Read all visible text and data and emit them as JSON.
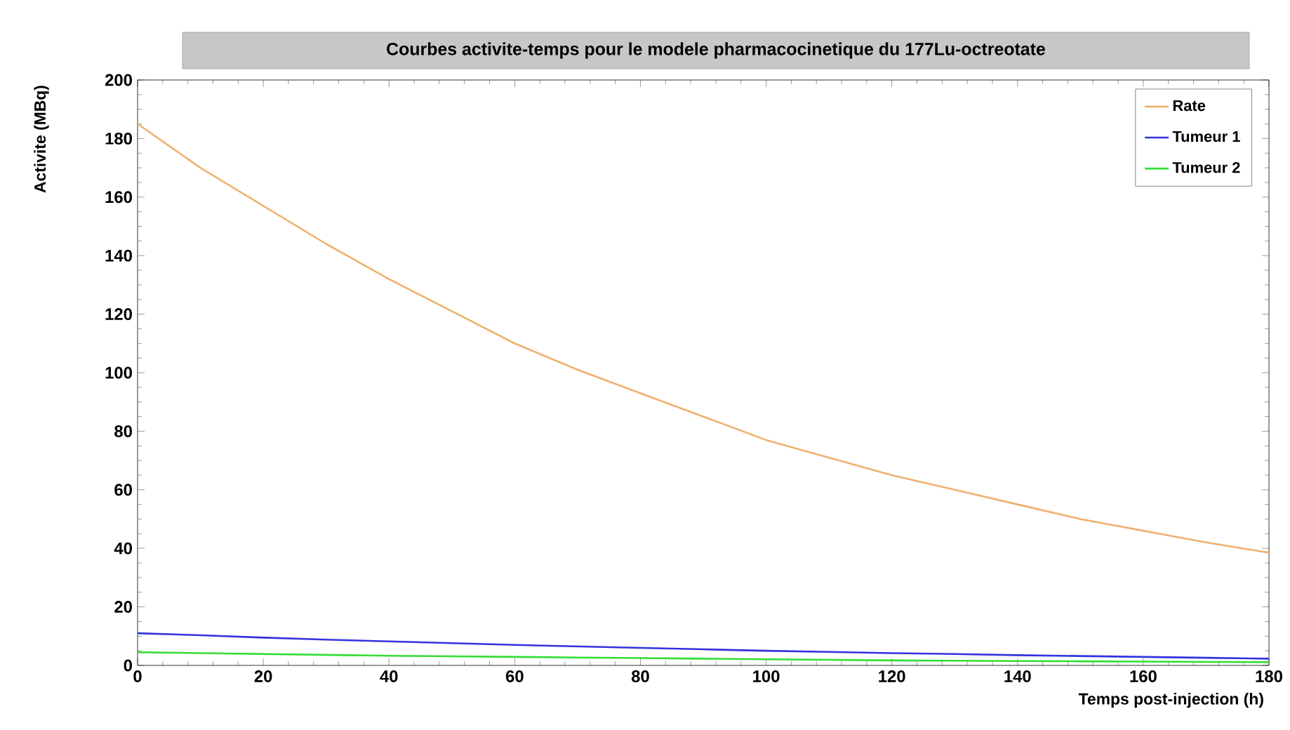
{
  "chart_data": {
    "type": "line",
    "title": "Courbes activite-temps pour le modele pharmacocinetique du 177Lu-octreotate",
    "xlabel": "Temps post-injection (h)",
    "ylabel": "Activite (MBq)",
    "x": [
      0,
      10,
      20,
      30,
      40,
      50,
      60,
      70,
      80,
      90,
      100,
      110,
      120,
      130,
      140,
      150,
      160,
      170,
      180
    ],
    "series": [
      {
        "name": "Rate",
        "color": "#f0b070",
        "values": [
          185,
          170,
          157,
          144,
          132,
          121,
          110,
          101,
          93,
          85,
          77,
          71,
          65,
          60,
          55,
          50,
          46,
          42,
          38.5
        ]
      },
      {
        "name": "Tumeur 1",
        "color": "#3333dd",
        "values": [
          11,
          10.3,
          9.5,
          8.8,
          8.2,
          7.6,
          7,
          6.5,
          6,
          5.5,
          5,
          4.6,
          4.2,
          3.9,
          3.5,
          3.2,
          2.9,
          2.6,
          2.3
        ]
      },
      {
        "name": "Tumeur 2",
        "color": "#33dd33",
        "values": [
          4.5,
          4.2,
          3.9,
          3.6,
          3.3,
          3.1,
          2.9,
          2.7,
          2.5,
          2.3,
          2.1,
          1.9,
          1.7,
          1.6,
          1.5,
          1.4,
          1.3,
          1.2,
          1.1
        ]
      }
    ],
    "xlim": [
      0,
      180
    ],
    "ylim": [
      0,
      200
    ],
    "xticks": [
      0,
      20,
      40,
      60,
      80,
      100,
      120,
      140,
      160,
      180
    ],
    "yticks": [
      0,
      20,
      40,
      60,
      80,
      100,
      120,
      140,
      160,
      180,
      200
    ],
    "legend": "top right",
    "grid": false,
    "marker": "none",
    "line_style": "solid"
  }
}
